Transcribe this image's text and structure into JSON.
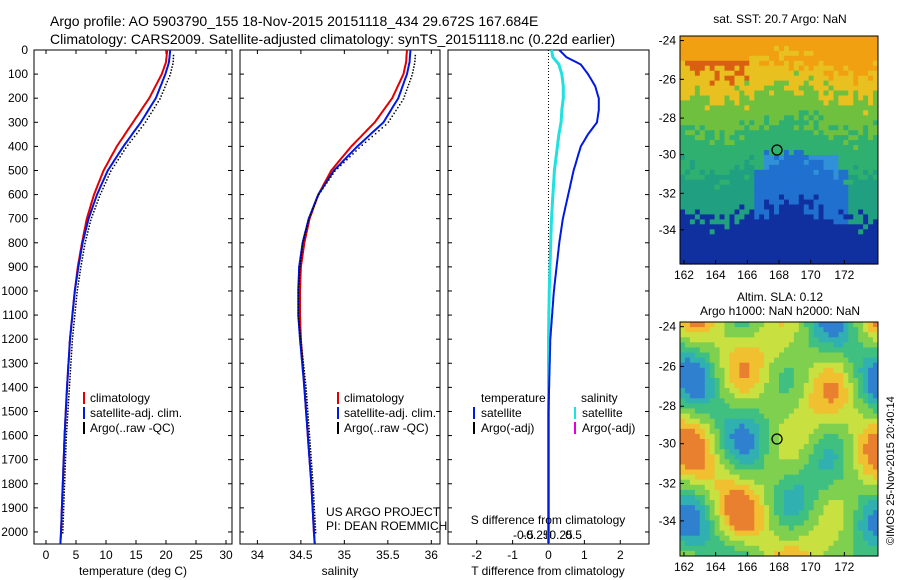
{
  "header": {
    "line1": "Argo profile: AO 5903790_155 18-Nov-2015 20151118_434 29.672S 167.684E",
    "line2": "Climatology: CARS2009. Satellite-adjusted climatology: synTS_20151118.nc (0.22d earlier)"
  },
  "colors": {
    "climatology": "#e00000",
    "satellite": "#0018e0",
    "argo": "#000000",
    "satellite_s": "#20e0e0",
    "argo_s": "#e000e0",
    "axis": "#000000"
  },
  "panels": {
    "temperature": {
      "xlabel": "temperature (deg C)",
      "legend": [
        "climatology",
        "satellite-adj. clim.",
        "Argo(..raw -QC)"
      ]
    },
    "salinity": {
      "xlabel": "salinity",
      "legend": [
        "climatology",
        "satellite-adj. clim.",
        "Argo(..raw -QC)"
      ],
      "credit1": "US ARGO PROJECT",
      "credit2": "PI: DEAN ROEMMICH"
    },
    "difference": {
      "xlabel": "T difference from climatology",
      "top_label": "S difference from climatology",
      "legend_head_t": "temperature",
      "legend_head_s": "salinity",
      "legend_t": [
        "satellite",
        "Argo(-adj)"
      ],
      "legend_s": [
        "satellite",
        "Argo(-adj)"
      ]
    },
    "sst_map": {
      "title": "sat. SST: 20.7  Argo: NaN"
    },
    "sla_map": {
      "title1": "Altim. SLA: 0.12",
      "title2": "Argo h1000: NaN h2000: NaN"
    }
  },
  "stamp": "©IMOS 25-Nov-2015 20:40:14",
  "chart_data": [
    {
      "type": "line",
      "title": "",
      "xlabel": "temperature (deg C)",
      "ylabel": "",
      "xlim": [
        -2,
        31
      ],
      "ylim": [
        2050,
        0
      ],
      "xticks": [
        0,
        5,
        10,
        15,
        20,
        25,
        30
      ],
      "yticks": [
        0,
        100,
        200,
        300,
        400,
        500,
        600,
        700,
        800,
        900,
        1000,
        1100,
        1200,
        1300,
        1400,
        1500,
        1600,
        1700,
        1800,
        1900,
        2000
      ],
      "series": [
        {
          "name": "climatology",
          "depth": [
            0,
            50,
            100,
            200,
            300,
            400,
            500,
            600,
            700,
            800,
            900,
            1000,
            1200,
            1400,
            1600,
            1800,
            2000,
            2050
          ],
          "values": [
            20.2,
            20.0,
            19.3,
            17.2,
            14.5,
            11.8,
            9.6,
            8.0,
            6.8,
            6.0,
            5.3,
            4.8,
            4.0,
            3.5,
            3.1,
            2.8,
            2.5,
            2.4
          ]
        },
        {
          "name": "satellite-adj. clim.",
          "depth": [
            0,
            50,
            100,
            200,
            300,
            400,
            500,
            600,
            700,
            800,
            900,
            1000,
            1200,
            1400,
            1600,
            1800,
            2000,
            2050
          ],
          "values": [
            20.7,
            20.5,
            19.9,
            18.3,
            15.8,
            12.9,
            10.3,
            8.5,
            7.1,
            6.1,
            5.4,
            4.8,
            4.0,
            3.5,
            3.1,
            2.8,
            2.5,
            2.4
          ]
        },
        {
          "name": "Argo(..raw -QC)",
          "depth": [
            0,
            50,
            100,
            200,
            300,
            400,
            500,
            600,
            700,
            800,
            900,
            1000,
            1200,
            1400,
            1600,
            1800,
            2000
          ],
          "values": [
            21.0,
            20.9,
            20.4,
            18.7,
            16.2,
            13.1,
            10.5,
            8.7,
            7.2,
            6.2,
            5.5,
            4.9,
            4.1,
            3.6,
            3.1,
            2.8,
            2.5
          ]
        }
      ]
    },
    {
      "type": "line",
      "title": "",
      "xlabel": "salinity",
      "ylabel": "",
      "xlim": [
        33.8,
        36.1
      ],
      "ylim": [
        2050,
        0
      ],
      "xticks": [
        34,
        34.5,
        35,
        35.5,
        36
      ],
      "series": [
        {
          "name": "climatology",
          "depth": [
            0,
            50,
            100,
            200,
            300,
            400,
            500,
            600,
            700,
            800,
            900,
            1000,
            1100,
            1200,
            1400,
            1600,
            1800,
            2000,
            2050
          ],
          "values": [
            35.72,
            35.71,
            35.68,
            35.55,
            35.35,
            35.08,
            34.85,
            34.7,
            34.6,
            34.54,
            34.5,
            34.49,
            34.49,
            34.5,
            34.54,
            34.58,
            34.62,
            34.65,
            34.66
          ]
        },
        {
          "name": "satellite-adj. clim.",
          "depth": [
            0,
            50,
            100,
            200,
            300,
            400,
            500,
            600,
            700,
            800,
            900,
            1000,
            1100,
            1200,
            1400,
            1600,
            1800,
            2000,
            2050
          ],
          "values": [
            35.76,
            35.75,
            35.72,
            35.62,
            35.45,
            35.15,
            34.88,
            34.7,
            34.59,
            34.52,
            34.48,
            34.47,
            34.47,
            34.49,
            34.54,
            34.58,
            34.62,
            34.65,
            34.66
          ]
        },
        {
          "name": "Argo(..raw -QC)",
          "depth": [
            0,
            50,
            100,
            200,
            300,
            400,
            500,
            600,
            700,
            800,
            900,
            1000,
            1100,
            1200,
            1400,
            1600,
            1800,
            2000
          ],
          "values": [
            35.8,
            35.79,
            35.76,
            35.66,
            35.48,
            35.16,
            34.87,
            34.68,
            34.57,
            34.5,
            34.47,
            34.45,
            34.45,
            34.48,
            34.54,
            34.58,
            34.62,
            34.65
          ]
        }
      ]
    },
    {
      "type": "line",
      "title": "",
      "xlabel": "T difference from climatology",
      "ylabel": "",
      "xlim": [
        -2.8,
        2.8
      ],
      "ylim": [
        2050,
        0
      ],
      "xticks": [
        -2,
        -1,
        0,
        1,
        2
      ],
      "xticks_top": [
        -0.5,
        -0.25,
        0,
        0.25,
        0.5
      ],
      "series": [
        {
          "name": "temperature satellite",
          "depth": [
            0,
            30,
            60,
            100,
            150,
            200,
            250,
            300,
            350,
            400,
            500,
            600,
            700,
            800,
            1000,
            1200,
            1500,
            2000
          ],
          "values": [
            0.3,
            0.5,
            0.9,
            1.1,
            1.3,
            1.4,
            1.4,
            1.35,
            1.1,
            0.9,
            0.7,
            0.55,
            0.4,
            0.3,
            0.15,
            0.05,
            0.0,
            0.0
          ]
        },
        {
          "name": "salinity satellite",
          "depth": [
            0,
            30,
            60,
            100,
            150,
            200,
            250,
            300,
            350,
            400,
            500,
            600,
            700,
            800,
            1000,
            1200,
            1500,
            2000
          ],
          "values": [
            0.02,
            0.03,
            0.07,
            0.09,
            0.1,
            0.1,
            0.09,
            0.085,
            0.07,
            0.06,
            0.04,
            0.03,
            0.02,
            0.015,
            0.005,
            0.0,
            0.0,
            0.0
          ]
        }
      ]
    }
  ]
}
